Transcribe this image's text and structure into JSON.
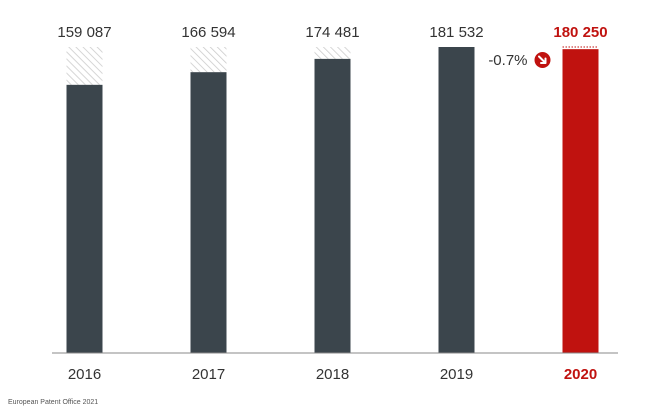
{
  "chart_data": {
    "type": "bar",
    "categories": [
      "2016",
      "2017",
      "2018",
      "2019",
      "2020"
    ],
    "values": [
      159087,
      166594,
      174481,
      181532,
      180250
    ],
    "value_labels": [
      "159 087",
      "166 594",
      "174 481",
      "181 532",
      "180 250"
    ],
    "highlight_index": 4,
    "change_label": "-0.7%",
    "ylim": [
      0,
      181532
    ],
    "grid": false,
    "colors": {
      "bar": "#3b454c",
      "highlight": "#c0120f",
      "hatch": "#cccccc",
      "axis": "#888888"
    }
  },
  "footer": "European Patent Office 2021"
}
